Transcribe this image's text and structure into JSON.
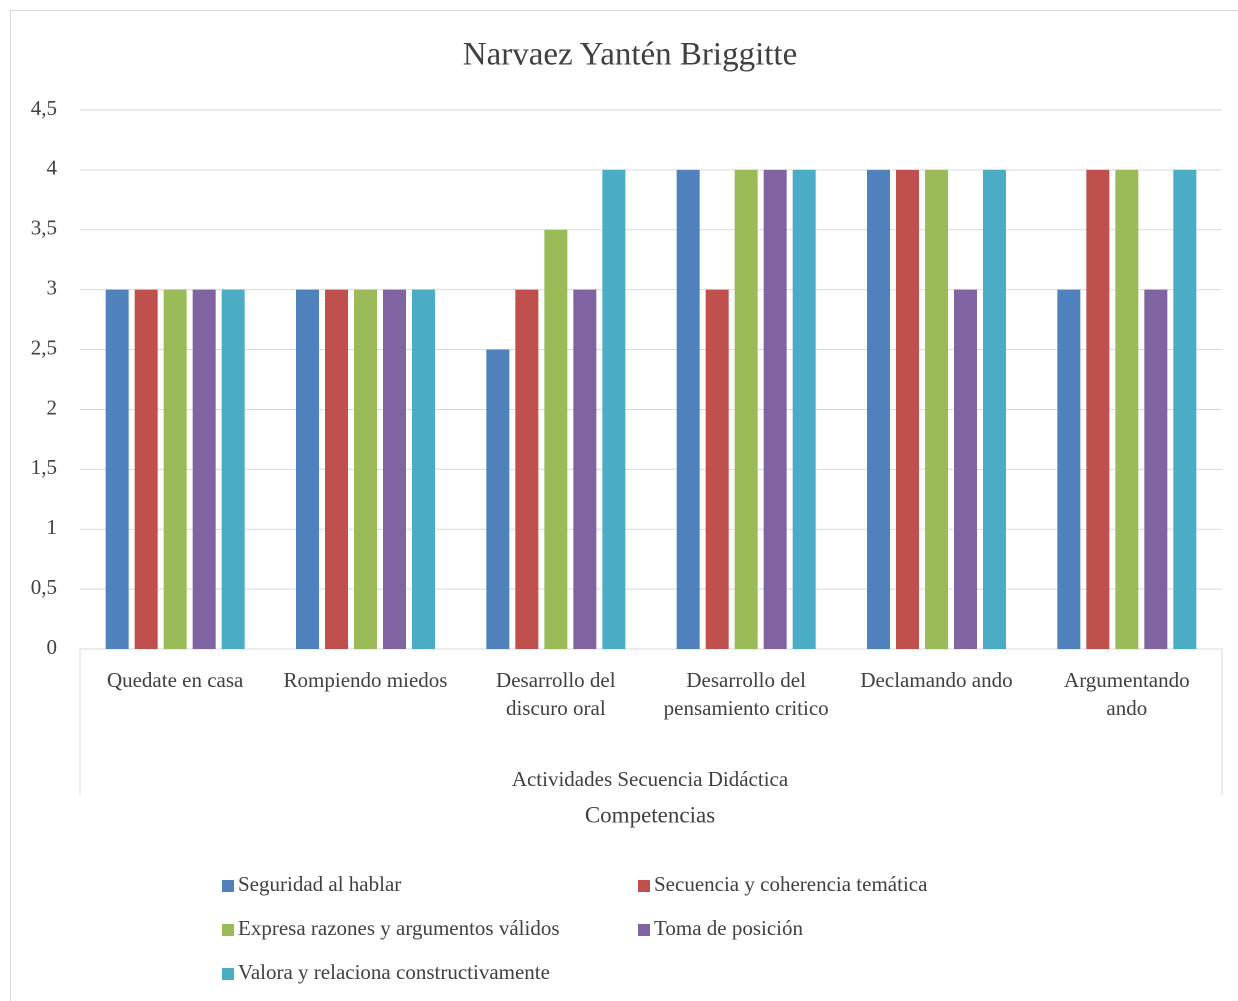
{
  "chart_data": {
    "type": "bar",
    "title": "Narvaez Yantén Briggitte",
    "categories": [
      "Quedate en casa",
      "Rompiendo miedos",
      "Desarrollo del discuro oral",
      "Desarrollo del pensamiento critico",
      "Declamando ando",
      "Argumentando ando"
    ],
    "x_label": "Actividades Secuencia Didáctica",
    "legend_title": "Competencias",
    "series": [
      {
        "name": "Seguridad al hablar",
        "color": "#4f81bd",
        "values": [
          3,
          3,
          2.5,
          4,
          4,
          3
        ]
      },
      {
        "name": "Secuencia y coherencia temática",
        "color": "#c0504d",
        "values": [
          3,
          3,
          3,
          3,
          4,
          4
        ]
      },
      {
        "name": "Expresa razones y argumentos válidos",
        "color": "#9bbb59",
        "values": [
          3,
          3,
          3.5,
          4,
          4,
          4
        ]
      },
      {
        "name": "Toma de posición",
        "color": "#8064a2",
        "values": [
          3,
          3,
          3,
          4,
          3,
          3
        ]
      },
      {
        "name": "Valora y relaciona constructivamente",
        "color": "#4bacc6",
        "values": [
          3,
          3,
          4,
          4,
          4,
          4
        ]
      }
    ],
    "ylim": [
      0,
      4.5
    ],
    "yticks": [
      0,
      {
        "value": 0.5,
        "label": "0,5"
      },
      1,
      {
        "value": 1.5,
        "label": "1,5"
      },
      2,
      {
        "value": 2.5,
        "label": "2,5"
      },
      3,
      {
        "value": 3.5,
        "label": "3,5"
      },
      4,
      {
        "value": 4.5,
        "label": "4,5"
      }
    ],
    "grid": true,
    "legend": "bottom"
  }
}
